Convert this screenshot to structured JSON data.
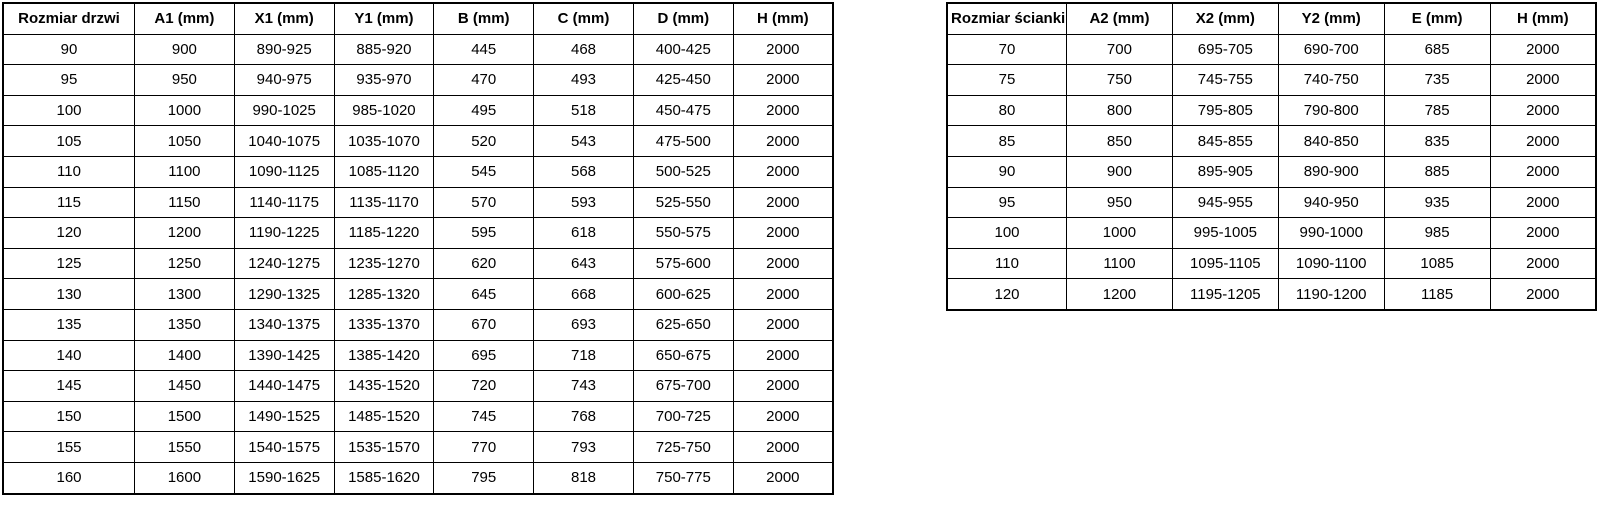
{
  "page": {
    "background_color": "#ffffff",
    "border_color": "#000000",
    "text_color": "#000000"
  },
  "door_table": {
    "headers": [
      "Rozmiar drzwi",
      "A1 (mm)",
      "X1 (mm)",
      "Y1 (mm)",
      "B (mm)",
      "C (mm)",
      "D (mm)",
      "H (mm)"
    ],
    "rows": [
      [
        "90",
        "900",
        "890-925",
        "885-920",
        "445",
        "468",
        "400-425",
        "2000"
      ],
      [
        "95",
        "950",
        "940-975",
        "935-970",
        "470",
        "493",
        "425-450",
        "2000"
      ],
      [
        "100",
        "1000",
        "990-1025",
        "985-1020",
        "495",
        "518",
        "450-475",
        "2000"
      ],
      [
        "105",
        "1050",
        "1040-1075",
        "1035-1070",
        "520",
        "543",
        "475-500",
        "2000"
      ],
      [
        "110",
        "1100",
        "1090-1125",
        "1085-1120",
        "545",
        "568",
        "500-525",
        "2000"
      ],
      [
        "115",
        "1150",
        "1140-1175",
        "1135-1170",
        "570",
        "593",
        "525-550",
        "2000"
      ],
      [
        "120",
        "1200",
        "1190-1225",
        "1185-1220",
        "595",
        "618",
        "550-575",
        "2000"
      ],
      [
        "125",
        "1250",
        "1240-1275",
        "1235-1270",
        "620",
        "643",
        "575-600",
        "2000"
      ],
      [
        "130",
        "1300",
        "1290-1325",
        "1285-1320",
        "645",
        "668",
        "600-625",
        "2000"
      ],
      [
        "135",
        "1350",
        "1340-1375",
        "1335-1370",
        "670",
        "693",
        "625-650",
        "2000"
      ],
      [
        "140",
        "1400",
        "1390-1425",
        "1385-1420",
        "695",
        "718",
        "650-675",
        "2000"
      ],
      [
        "145",
        "1450",
        "1440-1475",
        "1435-1520",
        "720",
        "743",
        "675-700",
        "2000"
      ],
      [
        "150",
        "1500",
        "1490-1525",
        "1485-1520",
        "745",
        "768",
        "700-725",
        "2000"
      ],
      [
        "155",
        "1550",
        "1540-1575",
        "1535-1570",
        "770",
        "793",
        "725-750",
        "2000"
      ],
      [
        "160",
        "1600",
        "1590-1625",
        "1585-1620",
        "795",
        "818",
        "750-775",
        "2000"
      ]
    ]
  },
  "wall_table": {
    "headers": [
      "Rozmiar ścianki",
      "A2 (mm)",
      "X2 (mm)",
      "Y2 (mm)",
      "E (mm)",
      "H (mm)"
    ],
    "rows": [
      [
        "70",
        "700",
        "695-705",
        "690-700",
        "685",
        "2000"
      ],
      [
        "75",
        "750",
        "745-755",
        "740-750",
        "735",
        "2000"
      ],
      [
        "80",
        "800",
        "795-805",
        "790-800",
        "785",
        "2000"
      ],
      [
        "85",
        "850",
        "845-855",
        "840-850",
        "835",
        "2000"
      ],
      [
        "90",
        "900",
        "895-905",
        "890-900",
        "885",
        "2000"
      ],
      [
        "95",
        "950",
        "945-955",
        "940-950",
        "935",
        "2000"
      ],
      [
        "100",
        "1000",
        "995-1005",
        "990-1000",
        "985",
        "2000"
      ],
      [
        "110",
        "1100",
        "1095-1105",
        "1090-1100",
        "1085",
        "2000"
      ],
      [
        "120",
        "1200",
        "1195-1205",
        "1190-1200",
        "1185",
        "2000"
      ]
    ]
  }
}
